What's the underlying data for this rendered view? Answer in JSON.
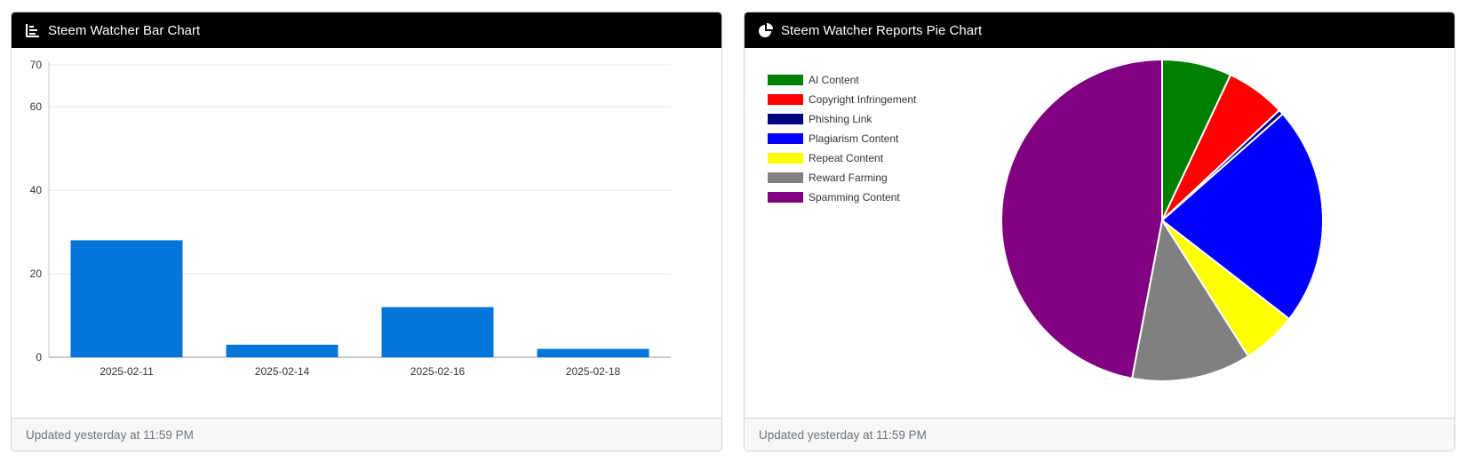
{
  "bar_card": {
    "title": "Steem Watcher Bar Chart",
    "footer": "Updated yesterday at 11:59 PM",
    "icon": "bar-chart-icon"
  },
  "pie_card": {
    "title": "Steem Watcher Reports Pie Chart",
    "footer": "Updated yesterday at 11:59 PM",
    "icon": "pie-chart-icon"
  },
  "chart_data": [
    {
      "type": "bar",
      "title": "",
      "xlabel": "",
      "ylabel": "",
      "categories": [
        "2025-02-11",
        "2025-02-14",
        "2025-02-16",
        "2025-02-18"
      ],
      "values": [
        28,
        3,
        12,
        2
      ],
      "ylim": [
        0,
        70
      ],
      "yticks": [
        0,
        20,
        40,
        60,
        70
      ],
      "grid": true,
      "color": "#0275d8"
    },
    {
      "type": "pie",
      "title": "",
      "legend_position": "top-left",
      "slices": [
        {
          "label": "AI Content",
          "value": 7,
          "color": "#008000"
        },
        {
          "label": "Copyright Infringement",
          "value": 6,
          "color": "#ff0000"
        },
        {
          "label": "Phishing Link",
          "value": 0.5,
          "color": "#000080"
        },
        {
          "label": "Plagiarism Content",
          "value": 22,
          "color": "#0000ff"
        },
        {
          "label": "Repeat Content",
          "value": 5.5,
          "color": "#ffff00"
        },
        {
          "label": "Reward Farming",
          "value": 12,
          "color": "#808080"
        },
        {
          "label": "Spamming Content",
          "value": 47,
          "color": "#800080"
        }
      ]
    }
  ]
}
